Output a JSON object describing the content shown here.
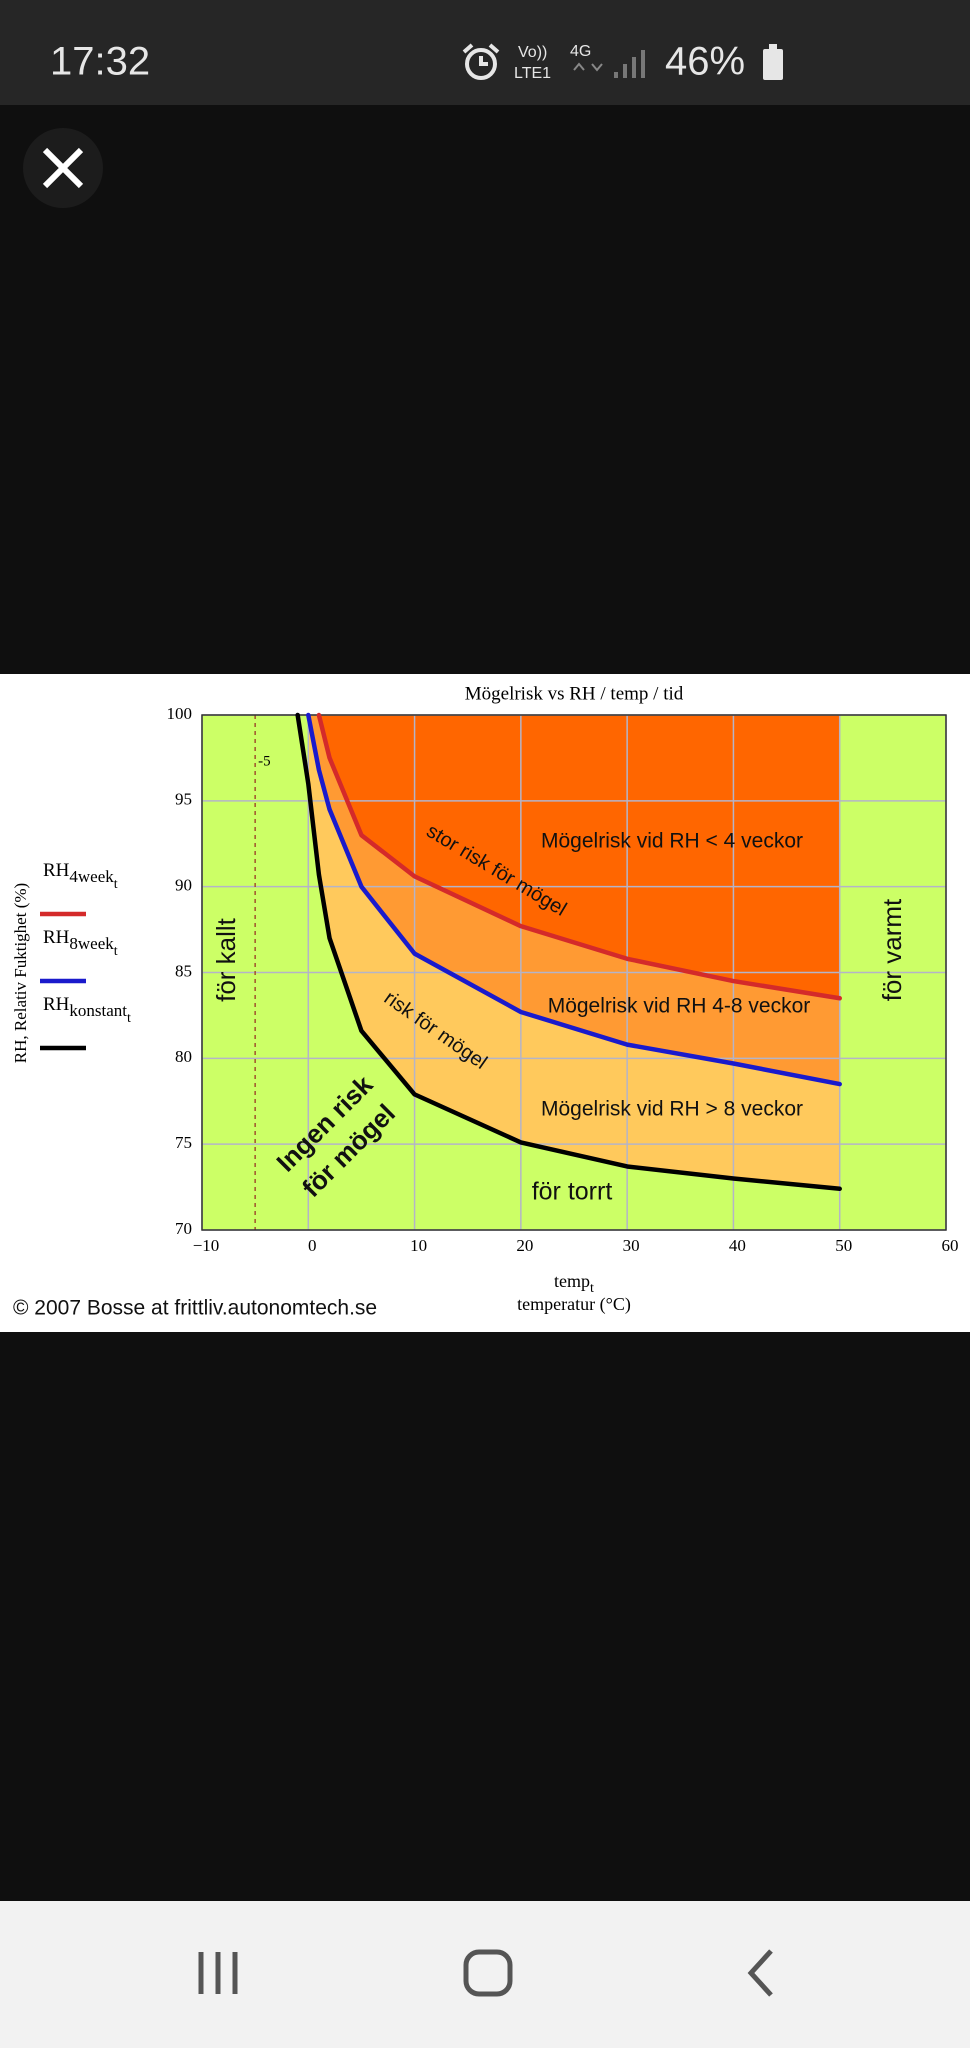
{
  "status_bar": {
    "time": "17:32",
    "volte": "Vo))",
    "lte": "LTE1",
    "network": "4G",
    "battery": "46%"
  },
  "chart_data": {
    "type": "line",
    "title": "Mögelrisk vs RH / temp / tid",
    "x_label": "temp",
    "x_label_subscript": "t",
    "x_label_2": "temperatur (°C)",
    "y_label": "RH, Relativ Fuktighet (%)",
    "x": [
      -1,
      0,
      1,
      2,
      5,
      10,
      20,
      30,
      40,
      50
    ],
    "series": [
      {
        "name": "RH",
        "subscript": "4week",
        "index": "t",
        "color": "#d42a2a",
        "values": [
          null,
          null,
          100,
          97.5,
          93,
          90.6,
          87.7,
          85.8,
          84.5,
          83.5
        ]
      },
      {
        "name": "RH",
        "subscript": "8week",
        "index": "t",
        "color": "#1a1acc",
        "values": [
          null,
          100,
          96.8,
          94.5,
          90,
          86.1,
          82.7,
          80.8,
          79.7,
          78.5
        ]
      },
      {
        "name": "RH",
        "subscript": "konstant",
        "index": "t",
        "color": "#000000",
        "values": [
          100,
          96,
          90.7,
          87,
          81.6,
          77.9,
          75.1,
          73.7,
          73.0,
          72.4
        ]
      }
    ],
    "xlim": [
      -10,
      60
    ],
    "ylim": [
      70,
      100
    ],
    "xticks": [
      {
        "value": -10,
        "label": "−10"
      },
      0,
      10,
      20,
      30,
      40,
      50,
      60
    ],
    "yticks": [
      70,
      75,
      80,
      85,
      90,
      95,
      100
    ],
    "grid": true,
    "vline": -5,
    "background": "#ccff66",
    "zone_colors": [
      "#ff6600",
      "#ff9a33",
      "#ffc95c"
    ],
    "annotations": [
      "Mögelrisk vid RH < 4 veckor",
      "stor risk för mögel",
      "Mögelrisk vid RH 4-8 veckor",
      "risk för mögel",
      "Mögelrisk vid RH > 8 veckor",
      "för torrt",
      "Ingen risk",
      "för mögel",
      "för kallt",
      "för varmt"
    ],
    "source": "© 2007 Bosse at frittliv.autonomtech.se"
  }
}
